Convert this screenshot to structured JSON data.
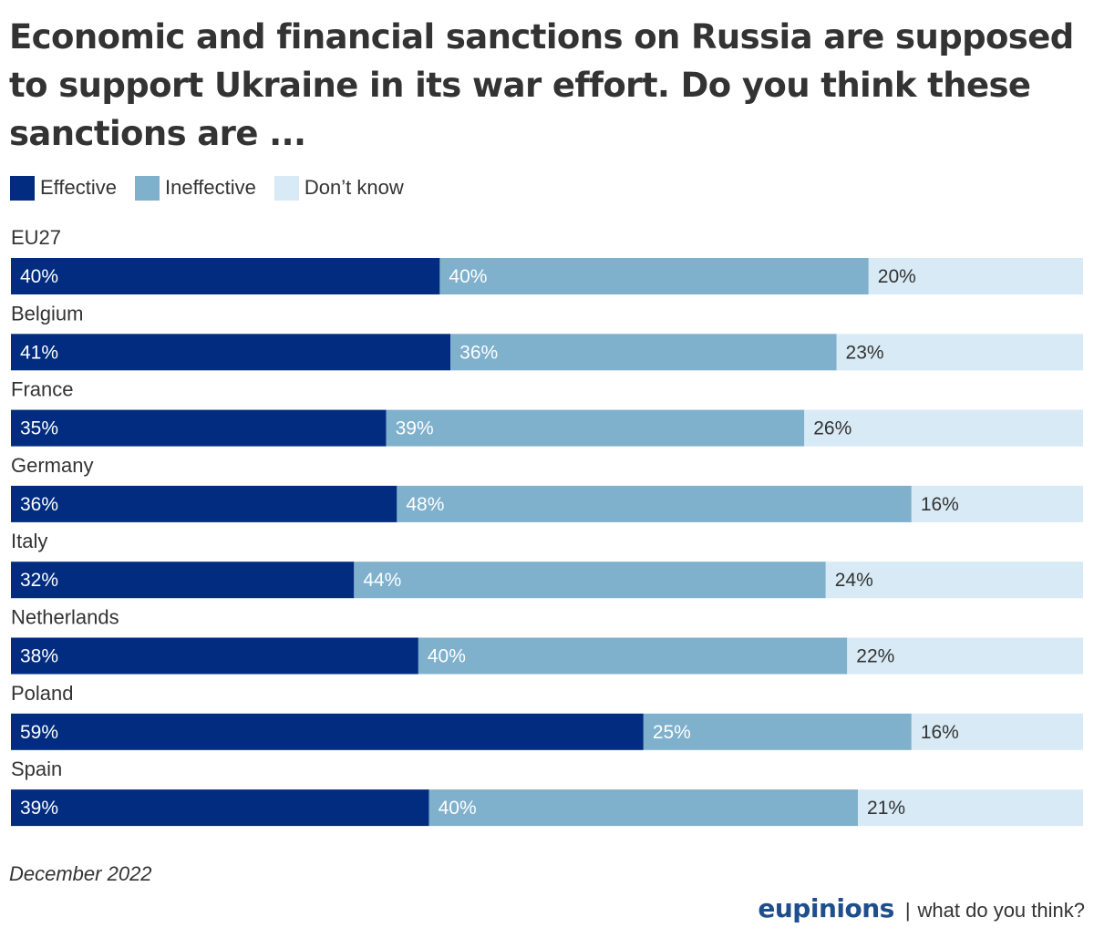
{
  "chart_data": {
    "type": "bar",
    "orientation": "horizontal",
    "stacked": true,
    "title": "Economic and financial sanctions on Russia are supposed to support Ukraine in its war effort. Do you think these sanctions are ...",
    "categories": [
      "EU27",
      "Belgium",
      "France",
      "Germany",
      "Italy",
      "Netherlands",
      "Poland",
      "Spain"
    ],
    "series": [
      {
        "name": "Effective",
        "color": "#012c80",
        "label_color": "#ffffff",
        "values": [
          40,
          41,
          35,
          36,
          32,
          38,
          59,
          39
        ]
      },
      {
        "name": "Ineffective",
        "color": "#7fb0cc",
        "label_color": "#ffffff",
        "values": [
          40,
          36,
          39,
          48,
          44,
          40,
          25,
          40
        ]
      },
      {
        "name": "Don’t know",
        "color": "#d8eaf5",
        "label_color": "#333333",
        "values": [
          20,
          23,
          26,
          16,
          24,
          22,
          16,
          21
        ]
      }
    ],
    "value_suffix": "%",
    "xlim": [
      0,
      100
    ],
    "legend_position": "top-left",
    "grid": false
  },
  "note": "December 2022",
  "brand": {
    "logo": "eupinions",
    "separator": "|",
    "tagline": "what do you think?"
  }
}
